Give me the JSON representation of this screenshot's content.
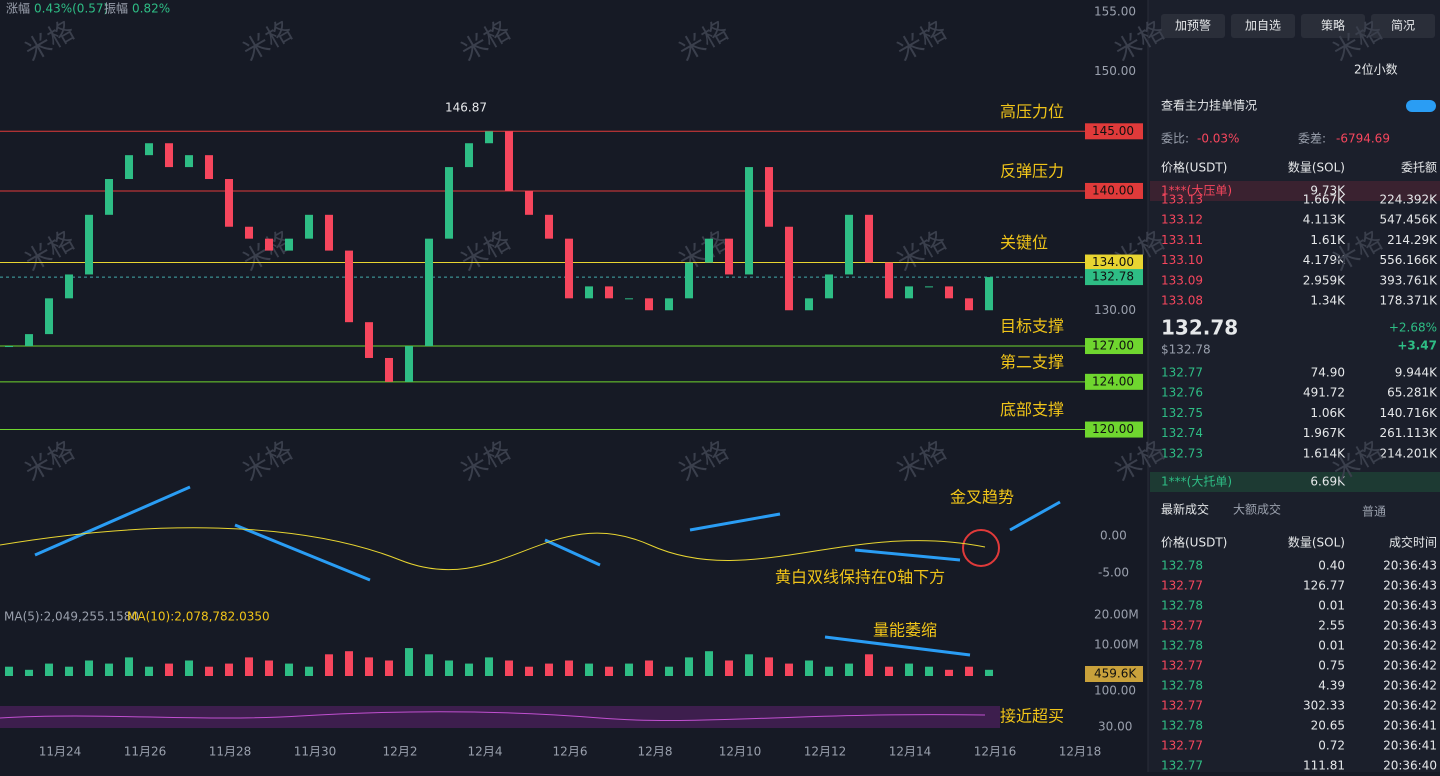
{
  "header": {
    "change_label": "涨幅",
    "change": "0.43%(0.57)",
    "amp_label": "振幅",
    "amp": "0.82%"
  },
  "watermark": "米格",
  "price_axis": [
    {
      "value": 155,
      "label": "155.00"
    },
    {
      "value": 150,
      "label": "150.00"
    },
    {
      "value": 130,
      "label": "130.00"
    }
  ],
  "levels": [
    {
      "value": 145,
      "label": "145.00",
      "note": "高压力位",
      "color": "#e03a3a"
    },
    {
      "value": 140,
      "label": "140.00",
      "note": "反弹压力",
      "color": "#e03a3a"
    },
    {
      "value": 134,
      "label": "134.00",
      "note": "关键位",
      "color": "#e8d531"
    },
    {
      "value": 127,
      "label": "127.00",
      "note": "目标支撑",
      "color": "#6fd62f"
    },
    {
      "value": 124,
      "label": "124.00",
      "note": "第二支撑",
      "color": "#6fd62f"
    },
    {
      "value": 120,
      "label": "120.00",
      "note": "底部支撑",
      "color": "#6fd62f"
    }
  ],
  "last_price": {
    "value": 132.78,
    "label": "132.78"
  },
  "high_mark": "146.87",
  "closes": [
    127,
    128,
    131,
    133,
    138,
    141,
    143,
    144,
    142,
    143,
    141,
    137,
    136,
    135,
    136,
    138,
    135,
    129,
    126,
    124,
    127,
    136,
    142,
    144,
    145,
    140,
    138,
    136,
    131,
    132,
    131,
    131,
    130,
    131,
    134,
    136,
    133,
    142,
    137,
    130,
    131,
    133,
    138,
    134,
    131,
    132,
    132,
    131,
    130,
    132.78
  ],
  "volumes": [
    3,
    2,
    4,
    3,
    5,
    4,
    6,
    3,
    4,
    5,
    3,
    4,
    6,
    5,
    4,
    3,
    7,
    8,
    6,
    5,
    9,
    7,
    5,
    4,
    6,
    5,
    3,
    4,
    5,
    4,
    3,
    4,
    5,
    3,
    6,
    8,
    5,
    7,
    6,
    4,
    5,
    3,
    4,
    7,
    3,
    4,
    3,
    2,
    3,
    2
  ],
  "macd": {
    "annotation1": "金叉趋势",
    "annotation2": "黄白双线保持在0轴下方",
    "ticks": [
      "0.00",
      "-5.00"
    ]
  },
  "volume": {
    "ma5": "MA(5):2,049,255.1580",
    "ma10": "MA(10):2,078,782.0350",
    "annotation": "量能萎缩",
    "ticks": [
      "20.00M",
      "10.00M"
    ],
    "current": "459.6K"
  },
  "rsi": {
    "annotation": "接近超买",
    "ticks": [
      "100.00",
      "30.00"
    ]
  },
  "dates": [
    "11月24",
    "11月26",
    "11月28",
    "11月30",
    "12月2",
    "12月4",
    "12月6",
    "12月8",
    "12月10",
    "12月12",
    "12月14",
    "12月16",
    "12月18"
  ],
  "panel": {
    "buttons": [
      "加预警",
      "加自选",
      "策略",
      "简况"
    ],
    "decimals": "2位小数",
    "main_orders": "查看主力挂单情况",
    "ratio_label": "委比:",
    "ratio": "-0.03%",
    "diff_label": "委差:",
    "diff": "-6794.69",
    "book_headers": [
      "价格(USDT)",
      "数量(SOL)",
      "委托额"
    ],
    "big_ask": [
      "1***(大压单)",
      "9.73K"
    ],
    "asks": [
      [
        "133.13",
        "1.667K",
        "224.392K"
      ],
      [
        "133.12",
        "4.113K",
        "547.456K"
      ],
      [
        "133.11",
        "1.61K",
        "214.29K"
      ],
      [
        "133.10",
        "4.179K",
        "556.166K"
      ],
      [
        "133.09",
        "2.959K",
        "393.761K"
      ],
      [
        "133.08",
        "1.34K",
        "178.371K"
      ]
    ],
    "price": "132.78",
    "price_usd": "$132.78",
    "pct": "+2.68%",
    "abs": "+3.47",
    "bids": [
      [
        "132.77",
        "74.90",
        "9.944K"
      ],
      [
        "132.76",
        "491.72",
        "65.281K"
      ],
      [
        "132.75",
        "1.06K",
        "140.716K"
      ],
      [
        "132.74",
        "1.967K",
        "261.113K"
      ],
      [
        "132.73",
        "1.614K",
        "214.201K"
      ]
    ],
    "big_bid": [
      "1***(大托单)",
      "6.69K"
    ],
    "tabs": [
      "最新成交",
      "大额成交"
    ],
    "normal": "普通",
    "trade_headers": [
      "价格(USDT)",
      "数量(SOL)",
      "成交时间"
    ],
    "trades": [
      [
        "132.78",
        "0.40",
        "20:36:43"
      ],
      [
        "132.77",
        "126.77",
        "20:36:43"
      ],
      [
        "132.78",
        "0.01",
        "20:36:43"
      ],
      [
        "132.77",
        "2.55",
        "20:36:43"
      ],
      [
        "132.78",
        "0.01",
        "20:36:42"
      ],
      [
        "132.77",
        "0.75",
        "20:36:42"
      ],
      [
        "132.78",
        "4.39",
        "20:36:42"
      ],
      [
        "132.77",
        "302.33",
        "20:36:42"
      ],
      [
        "132.78",
        "20.65",
        "20:36:41"
      ],
      [
        "132.77",
        "0.72",
        "20:36:41"
      ],
      [
        "132.77",
        "111.81",
        "20:36:40"
      ]
    ]
  }
}
